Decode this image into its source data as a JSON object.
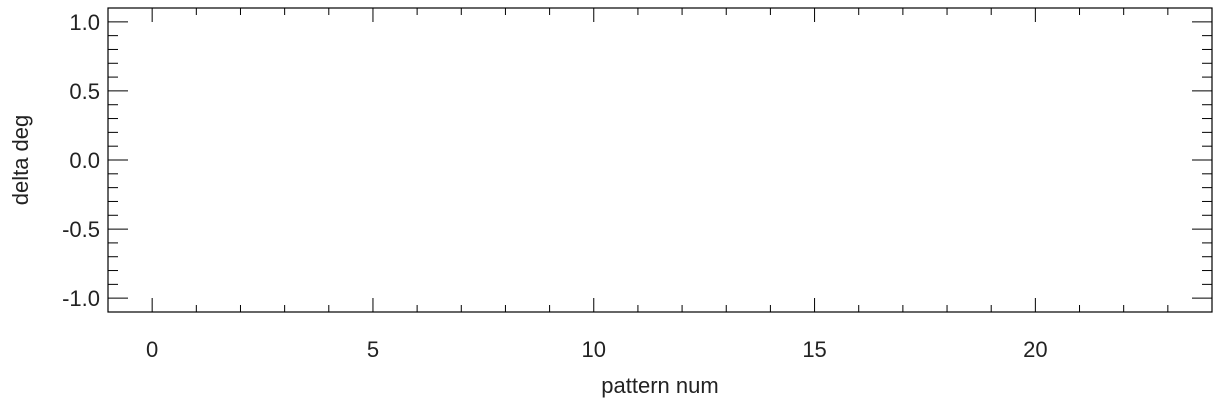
{
  "chart_data": {
    "type": "line",
    "title": "",
    "xlabel": "pattern num",
    "ylabel": "delta deg",
    "xlim": [
      -1,
      24
    ],
    "ylim": [
      -1.1,
      1.1
    ],
    "x_ticks": [
      0,
      5,
      10,
      15,
      20
    ],
    "x_tick_labels": [
      "0",
      "5",
      "10",
      "15",
      "20"
    ],
    "x_minor_step": 1,
    "y_ticks": [
      -1.0,
      -0.5,
      0.0,
      0.5,
      1.0
    ],
    "y_tick_labels": [
      "-1.0",
      "-0.5",
      "0.0",
      "0.5",
      "1.0"
    ],
    "y_minor_step": 0.1,
    "grid": false,
    "series": [],
    "colors": {
      "axis": "#000000",
      "text": "#222222",
      "background": "#ffffff"
    }
  }
}
